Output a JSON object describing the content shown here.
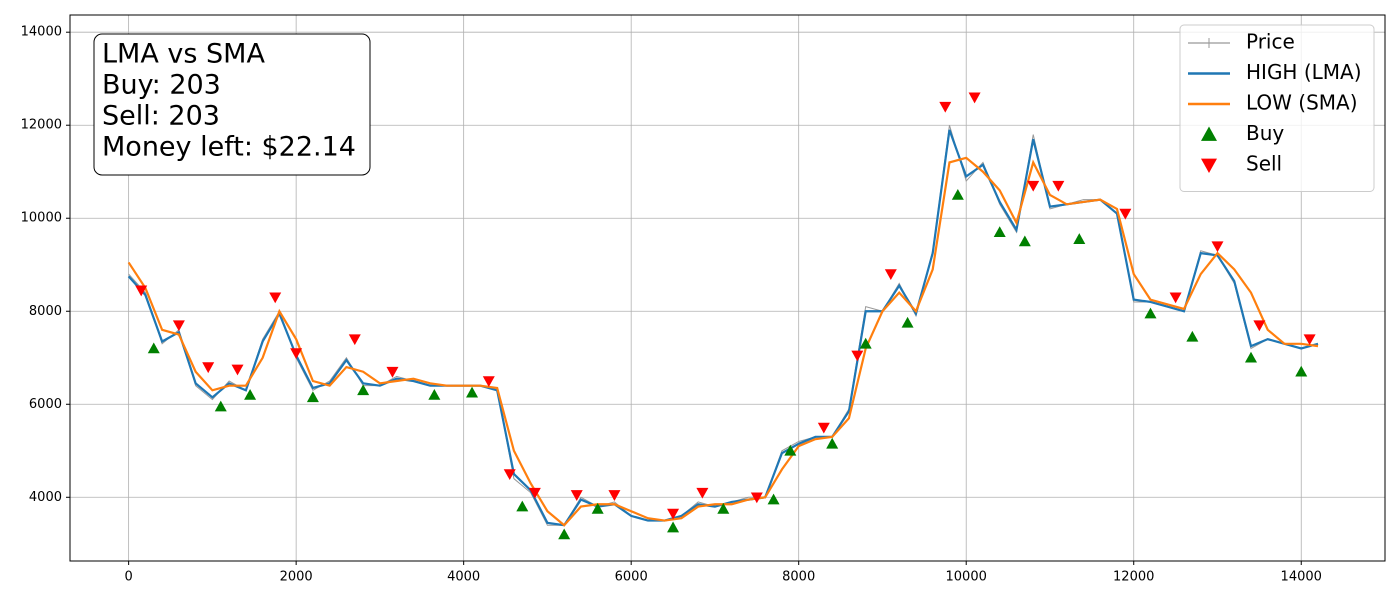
{
  "chart_data": {
    "type": "line",
    "annotation": [
      "LMA vs SMA",
      "Buy: 203",
      "Sell: 203",
      "Money left: $22.14"
    ],
    "x": [
      0,
      200,
      400,
      600,
      800,
      1000,
      1200,
      1400,
      1600,
      1800,
      2000,
      2200,
      2400,
      2600,
      2800,
      3000,
      3200,
      3400,
      3600,
      3800,
      4000,
      4200,
      4400,
      4600,
      4800,
      5000,
      5200,
      5400,
      5600,
      5800,
      6000,
      6200,
      6400,
      6600,
      6800,
      7000,
      7200,
      7400,
      7600,
      7800,
      8000,
      8200,
      8400,
      8600,
      8800,
      9000,
      9200,
      9400,
      9600,
      9800,
      10000,
      10200,
      10400,
      10600,
      10800,
      11000,
      11200,
      11400,
      11600,
      11800,
      12000,
      12200,
      12400,
      12600,
      12800,
      13000,
      13200,
      13400,
      13600,
      13800,
      14000,
      14200
    ],
    "series": [
      {
        "name": "Price",
        "color": "#999999",
        "values": [
          8800,
          8400,
          7300,
          7600,
          6400,
          6100,
          6500,
          6300,
          7400,
          8000,
          7000,
          6300,
          6500,
          7000,
          6400,
          6400,
          6600,
          6500,
          6400,
          6400,
          6400,
          6400,
          6300,
          4400,
          4100,
          3400,
          3400,
          4000,
          3800,
          3900,
          3600,
          3500,
          3500,
          3600,
          3900,
          3800,
          3900,
          4000,
          4000,
          5000,
          5200,
          5300,
          5300,
          5900,
          8100,
          8000,
          8600,
          7900,
          9300,
          12000,
          10800,
          11200,
          10300,
          9700,
          11800,
          10200,
          10300,
          10400,
          10400,
          10100,
          8200,
          8200,
          8100,
          8000,
          9300,
          9200,
          8600,
          7200,
          7400,
          7300,
          7200,
          7300
        ]
      },
      {
        "name": "HIGH (LMA)",
        "color": "#1f77b4",
        "values": [
          8750,
          8350,
          7350,
          7550,
          6450,
          6150,
          6450,
          6300,
          7350,
          7950,
          7050,
          6350,
          6450,
          6950,
          6450,
          6400,
          6550,
          6500,
          6400,
          6400,
          6400,
          6400,
          6300,
          4500,
          4150,
          3450,
          3400,
          3950,
          3800,
          3850,
          3600,
          3500,
          3500,
          3600,
          3850,
          3800,
          3900,
          3950,
          4000,
          4950,
          5150,
          5300,
          5300,
          5850,
          8000,
          8000,
          8550,
          7950,
          9250,
          11900,
          10900,
          11150,
          10350,
          9750,
          11700,
          10250,
          10300,
          10350,
          10400,
          10100,
          8250,
          8200,
          8100,
          8000,
          9250,
          9200,
          8650,
          7250,
          7400,
          7300,
          7200,
          7300
        ]
      },
      {
        "name": "LOW (SMA)",
        "color": "#ff7f0e",
        "values": [
          9050,
          8500,
          7600,
          7500,
          6700,
          6300,
          6400,
          6400,
          7000,
          8000,
          7400,
          6500,
          6400,
          6800,
          6700,
          6450,
          6500,
          6550,
          6450,
          6400,
          6400,
          6400,
          6350,
          5000,
          4300,
          3700,
          3400,
          3800,
          3850,
          3850,
          3700,
          3550,
          3500,
          3550,
          3800,
          3850,
          3850,
          3950,
          4000,
          4600,
          5100,
          5250,
          5300,
          5700,
          7200,
          8000,
          8400,
          8000,
          8900,
          11200,
          11300,
          11000,
          10600,
          9900,
          11200,
          10500,
          10300,
          10350,
          10400,
          10200,
          8800,
          8250,
          8150,
          8050,
          8800,
          9250,
          8900,
          8400,
          7600,
          7300,
          7300,
          7250
        ]
      }
    ],
    "markers": [
      {
        "name": "Buy",
        "color": "#008000",
        "shape": "up",
        "x": [
          300,
          1100,
          1450,
          2200,
          2800,
          3650,
          4100,
          4700,
          5200,
          5600,
          6500,
          7100,
          7700,
          7900,
          8400,
          8800,
          9300,
          9900,
          10400,
          10700,
          11350,
          12200,
          12700,
          13400,
          14000
        ],
        "y": [
          7200,
          5950,
          6200,
          6150,
          6300,
          6200,
          6250,
          3800,
          3200,
          3750,
          3350,
          3750,
          3950,
          5000,
          5150,
          7300,
          7750,
          10500,
          9700,
          9500,
          9550,
          7950,
          7450,
          7000,
          6700
        ]
      },
      {
        "name": "Sell",
        "color": "#ff0000",
        "shape": "down",
        "x": [
          150,
          600,
          950,
          1300,
          1750,
          2000,
          2700,
          3150,
          4300,
          4550,
          4850,
          5350,
          5800,
          6500,
          6850,
          7500,
          8300,
          8700,
          9100,
          9750,
          10100,
          10800,
          11100,
          11900,
          12500,
          13000,
          13500,
          14100
        ],
        "y": [
          8450,
          7700,
          6800,
          6750,
          8300,
          7100,
          7400,
          6700,
          6500,
          4500,
          4100,
          4050,
          4050,
          3650,
          4100,
          4000,
          5500,
          7050,
          8800,
          12400,
          12600,
          10700,
          10700,
          10100,
          8300,
          9400,
          7700,
          7400
        ]
      }
    ],
    "xlim": [
      -700,
      15000
    ],
    "ylim": [
      2630,
      14370
    ],
    "xticks": [
      0,
      2000,
      4000,
      6000,
      8000,
      10000,
      12000,
      14000
    ],
    "yticks": [
      4000,
      6000,
      8000,
      10000,
      12000,
      14000
    ],
    "grid": true,
    "legend": "upper right"
  }
}
